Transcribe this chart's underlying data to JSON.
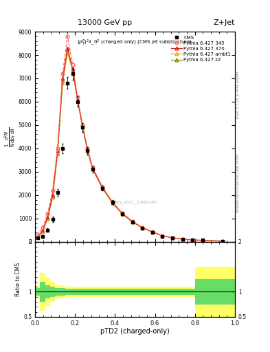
{
  "title_top": "13000 GeV pp",
  "title_right": "Z+Jet",
  "xlabel": "pTD2 (charged-only)",
  "ylabel_ratio": "Ratio to CMS",
  "watermark": "CMS_2021_I1920187",
  "right_label1": "Rivet 3.1.10, ≥ 400k events",
  "right_label2": "mcplots.cern.ch [arXiv:1306.3436]",
  "cms_x": [
    0.0125,
    0.0375,
    0.0625,
    0.0875,
    0.1125,
    0.1375,
    0.1625,
    0.1875,
    0.2125,
    0.2375,
    0.2625,
    0.2875,
    0.3375,
    0.3875,
    0.4375,
    0.4875,
    0.5375,
    0.5875,
    0.6375,
    0.6875,
    0.7375,
    0.7875,
    0.8375,
    0.9375
  ],
  "cms_y": [
    160,
    220,
    500,
    950,
    2100,
    4000,
    6800,
    7200,
    6000,
    4900,
    3900,
    3100,
    2300,
    1700,
    1200,
    850,
    580,
    400,
    240,
    170,
    120,
    85,
    65,
    30
  ],
  "cms_yerr": [
    30,
    50,
    80,
    120,
    150,
    200,
    250,
    250,
    220,
    190,
    160,
    130,
    110,
    90,
    70,
    55,
    40,
    30,
    22,
    18,
    14,
    11,
    9,
    6
  ],
  "p6_345_x": [
    0.0125,
    0.0375,
    0.0625,
    0.0875,
    0.1125,
    0.1375,
    0.1625,
    0.1875,
    0.2125,
    0.2375,
    0.2625,
    0.2875,
    0.3375,
    0.3875,
    0.4375,
    0.4875,
    0.5375,
    0.5875,
    0.6375,
    0.6875,
    0.7375,
    0.7875,
    0.8375,
    0.9375
  ],
  "p6_345_y": [
    280,
    600,
    1200,
    2200,
    4000,
    7200,
    8800,
    7600,
    6200,
    5000,
    4000,
    3200,
    2350,
    1700,
    1220,
    880,
    610,
    430,
    260,
    175,
    120,
    82,
    58,
    28
  ],
  "p6_370_x": [
    0.0125,
    0.0375,
    0.0625,
    0.0875,
    0.1125,
    0.1375,
    0.1625,
    0.1875,
    0.2125,
    0.2375,
    0.2625,
    0.2875,
    0.3375,
    0.3875,
    0.4375,
    0.4875,
    0.5375,
    0.5875,
    0.6375,
    0.6875,
    0.7375,
    0.7875,
    0.8375,
    0.9375
  ],
  "p6_370_y": [
    210,
    480,
    1050,
    2000,
    3900,
    7000,
    8300,
    7400,
    6100,
    4950,
    3950,
    3150,
    2320,
    1680,
    1200,
    860,
    600,
    420,
    255,
    170,
    116,
    79,
    56,
    27
  ],
  "p6_ambt1_x": [
    0.0125,
    0.0375,
    0.0625,
    0.0875,
    0.1125,
    0.1375,
    0.1625,
    0.1875,
    0.2125,
    0.2375,
    0.2625,
    0.2875,
    0.3375,
    0.3875,
    0.4375,
    0.4875,
    0.5375,
    0.5875,
    0.6375,
    0.6875,
    0.7375,
    0.7875,
    0.8375,
    0.9375
  ],
  "p6_ambt1_y": [
    190,
    430,
    980,
    1900,
    3750,
    6800,
    8100,
    7350,
    6050,
    4900,
    3900,
    3100,
    2280,
    1650,
    1180,
    845,
    590,
    415,
    250,
    167,
    114,
    77,
    55,
    26
  ],
  "p6_z2_x": [
    0.0125,
    0.0375,
    0.0625,
    0.0875,
    0.1125,
    0.1375,
    0.1625,
    0.1875,
    0.2125,
    0.2375,
    0.2625,
    0.2875,
    0.3375,
    0.3875,
    0.4375,
    0.4875,
    0.5375,
    0.5875,
    0.6375,
    0.6875,
    0.7375,
    0.7875,
    0.8375,
    0.9375
  ],
  "p6_z2_y": [
    195,
    440,
    1000,
    1940,
    3800,
    6900,
    8200,
    7390,
    6070,
    4920,
    3920,
    3120,
    2300,
    1660,
    1190,
    852,
    594,
    418,
    252,
    169,
    115,
    78,
    56,
    27
  ],
  "ylim_main": [
    0,
    9000
  ],
  "xlim": [
    0.0,
    1.0
  ],
  "ratio_ylim": [
    0.5,
    2.0
  ],
  "color_cms": "#000000",
  "color_p6_345": "#ff6666",
  "color_p6_370": "#cc2222",
  "color_p6_ambt1": "#ddaa00",
  "color_p6_z2": "#888800",
  "yticks_main": [
    0,
    1000,
    2000,
    3000,
    4000,
    5000,
    6000,
    7000,
    8000,
    9000
  ],
  "ytick_labels_main": [
    "0",
    "1000",
    "2000",
    "3000",
    "4000",
    "5000",
    "6000",
    "7000",
    "8000",
    "9000"
  ],
  "xticks_main": [
    0.0,
    0.25,
    0.5,
    0.75,
    1.0
  ],
  "xticks_ratio": [
    0.0,
    0.25,
    0.5,
    0.75,
    1.0
  ],
  "ratio_band_yellow_bins": [
    0.0,
    0.025,
    0.05,
    0.075,
    0.1,
    0.15,
    0.8,
    1.0
  ],
  "ratio_band_yellow_lo": [
    0.88,
    0.62,
    0.72,
    0.8,
    0.87,
    0.9,
    0.5,
    0.5
  ],
  "ratio_band_yellow_hi": [
    1.12,
    1.38,
    1.28,
    1.2,
    1.13,
    1.1,
    1.5,
    1.5
  ],
  "ratio_band_green_bins": [
    0.0,
    0.025,
    0.05,
    0.075,
    0.1,
    0.15,
    0.8,
    1.0
  ],
  "ratio_band_green_lo": [
    0.92,
    0.8,
    0.87,
    0.9,
    0.93,
    0.94,
    0.75,
    0.75
  ],
  "ratio_band_green_hi": [
    1.08,
    1.2,
    1.13,
    1.1,
    1.07,
    1.06,
    1.25,
    1.25
  ]
}
